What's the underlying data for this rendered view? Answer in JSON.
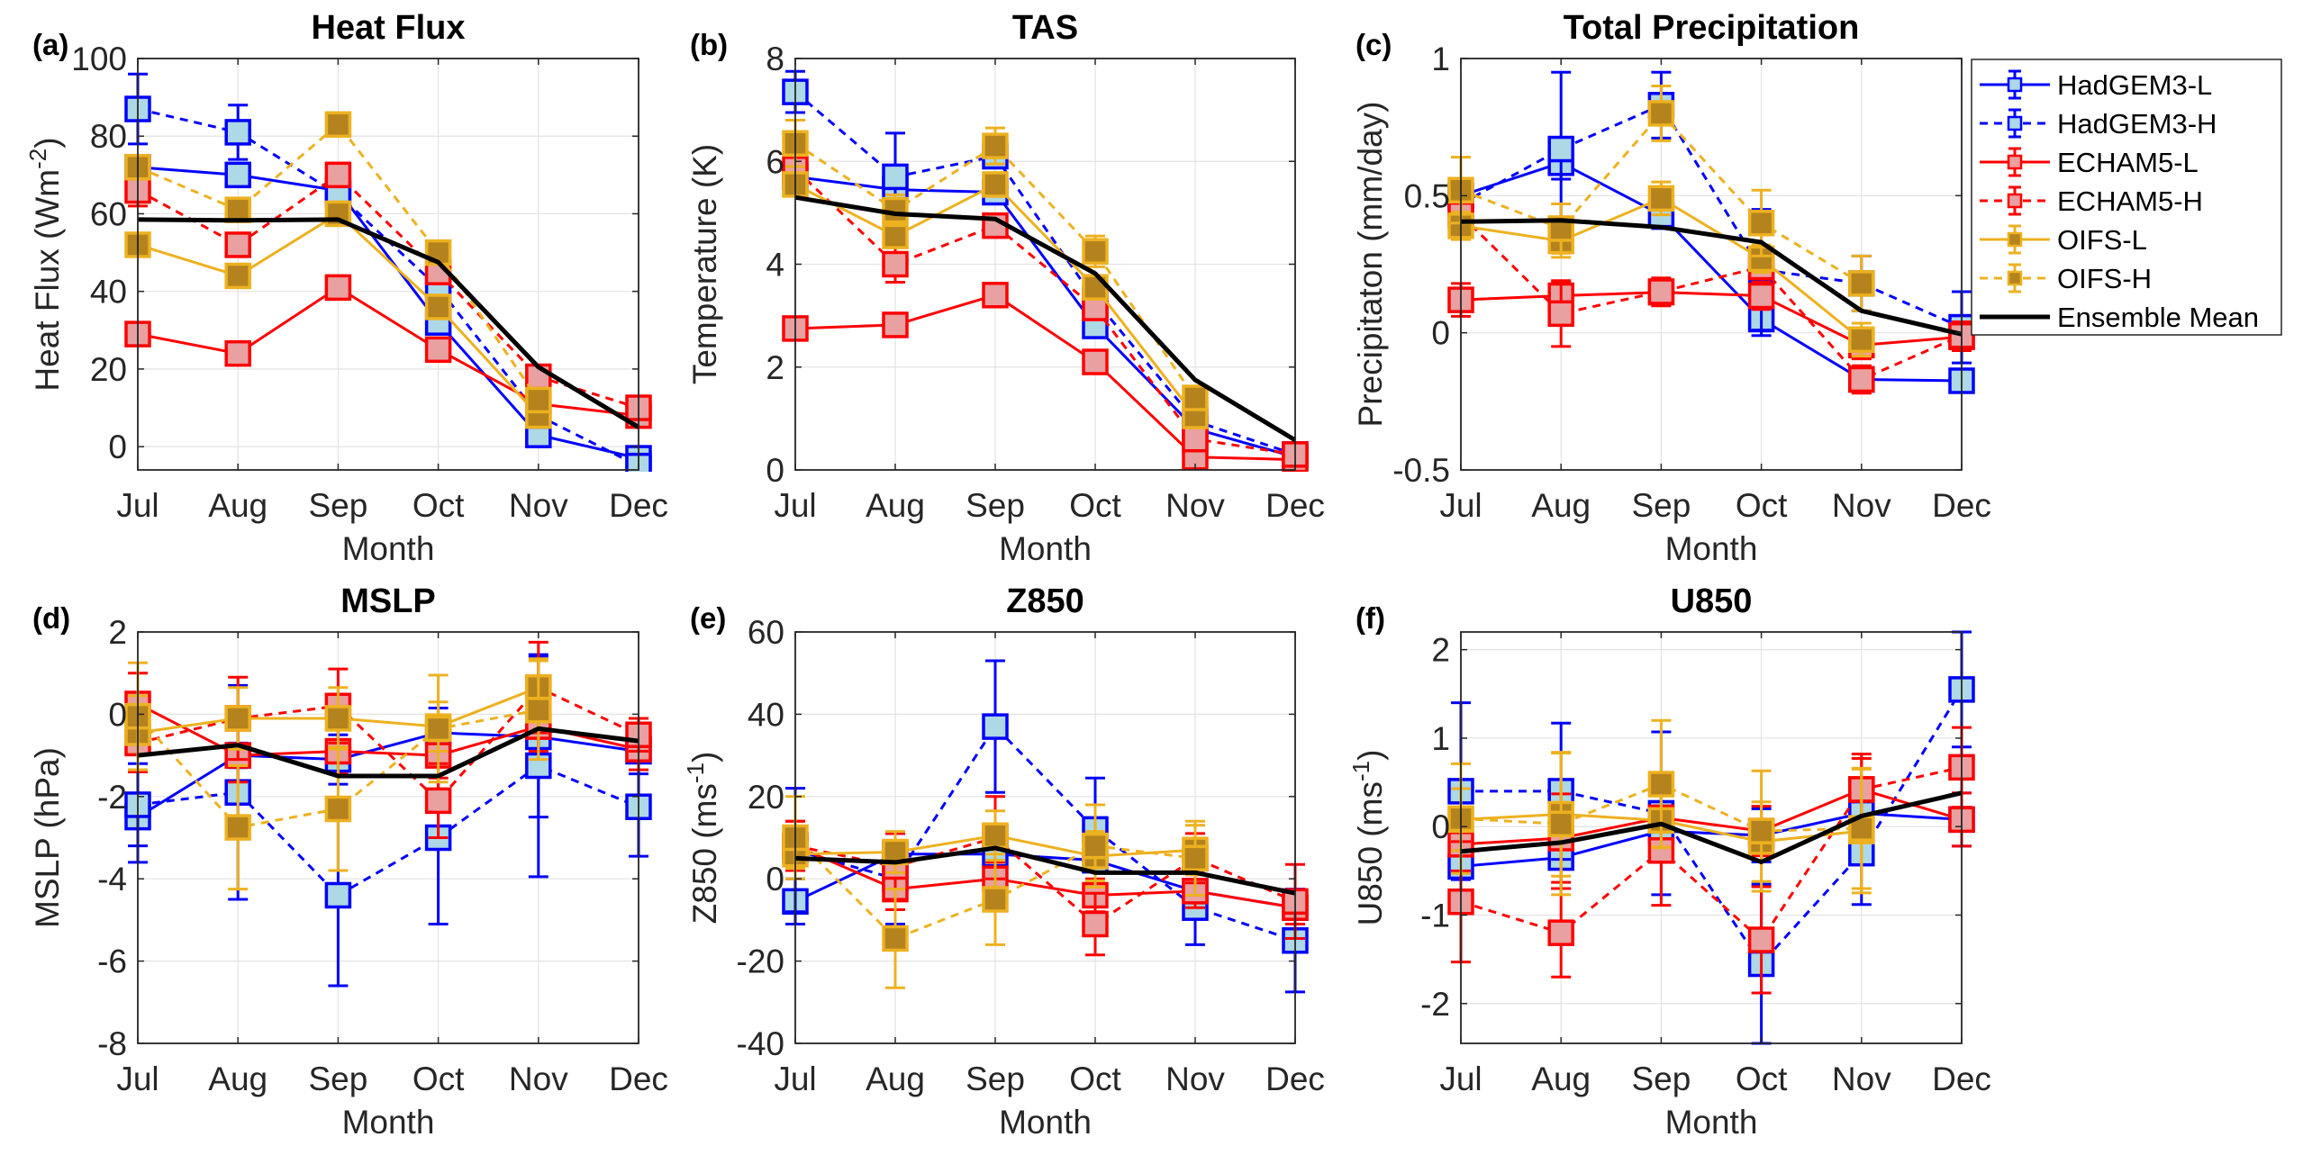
{
  "figure": {
    "legend": {
      "placement": "right-of-panel-c",
      "entries": [
        "HadGEM3-L",
        "HadGEM3-H",
        "ECHAM5-L",
        "ECHAM5-H",
        "OIFS-L",
        "OIFS-H",
        "Ensemble Mean"
      ]
    },
    "series_style": [
      {
        "name": "HadGEM3-L",
        "line": "#0000FF",
        "face": "#ADD8E6",
        "dash": "solid",
        "marker": "square"
      },
      {
        "name": "HadGEM3-H",
        "line": "#0000FF",
        "face": "#ADD8E6",
        "dash": "dashed",
        "marker": "square"
      },
      {
        "name": "ECHAM5-L",
        "line": "#FF0000",
        "face": "#E8A0A0",
        "dash": "solid",
        "marker": "square"
      },
      {
        "name": "ECHAM5-H",
        "line": "#FF0000",
        "face": "#E8A0A0",
        "dash": "dashed",
        "marker": "square"
      },
      {
        "name": "OIFS-L",
        "line": "#EDB120",
        "face": "#B5831D",
        "dash": "solid",
        "marker": "square"
      },
      {
        "name": "OIFS-H",
        "line": "#EDB120",
        "face": "#B5831D",
        "dash": "dashed",
        "marker": "square"
      },
      {
        "name": "Ensemble Mean",
        "line": "#000000",
        "face": null,
        "dash": "solid",
        "marker": "none"
      }
    ]
  },
  "chart_data": [
    {
      "panel": "(a)",
      "type": "line",
      "title": "Heat Flux",
      "xlabel": "Month",
      "ylabel": "Heat Flux (Wm",
      "ylabel_sup": "-2",
      "ylabel_end": ")",
      "categories": [
        "Jul",
        "Aug",
        "Sep",
        "Oct",
        "Nov",
        "Dec"
      ],
      "ylim": [
        -6,
        100
      ],
      "yticks": [
        0,
        20,
        40,
        60,
        80,
        100
      ],
      "grid": true,
      "series": [
        {
          "name": "HadGEM3-L",
          "values": [
            72,
            70,
            66,
            32,
            3,
            -3
          ],
          "err": [
            3,
            2,
            2,
            2,
            2,
            2
          ]
        },
        {
          "name": "HadGEM3-H",
          "values": [
            87,
            81,
            65,
            41,
            8,
            -5
          ],
          "err": [
            9,
            7,
            8,
            3,
            3,
            2
          ]
        },
        {
          "name": "ECHAM5-L",
          "values": [
            29,
            24,
            41,
            25,
            11,
            8
          ],
          "err": [
            2,
            2,
            2,
            2,
            2,
            2
          ]
        },
        {
          "name": "ECHAM5-H",
          "values": [
            66,
            52,
            70,
            45,
            18,
            10
          ],
          "err": [
            4,
            3,
            3,
            3,
            2,
            2
          ]
        },
        {
          "name": "OIFS-L",
          "values": [
            52,
            44,
            60,
            36,
            8,
            null
          ],
          "err": [
            2,
            2,
            2,
            2,
            2,
            null
          ]
        },
        {
          "name": "OIFS-H",
          "values": [
            72,
            61,
            83,
            50,
            12,
            null
          ],
          "err": [
            3,
            2,
            2,
            2,
            2,
            null
          ]
        },
        {
          "name": "Ensemble Mean",
          "values": [
            58.5,
            58.3,
            58.5,
            47.5,
            20.5,
            5
          ]
        }
      ]
    },
    {
      "panel": "(b)",
      "type": "line",
      "title": "TAS",
      "xlabel": "Month",
      "ylabel": "Temperature (K)",
      "ylabel_sup": "",
      "ylabel_end": "",
      "categories": [
        "Jul",
        "Aug",
        "Sep",
        "Oct",
        "Nov",
        "Dec"
      ],
      "ylim": [
        0,
        8
      ],
      "yticks": [
        0,
        2,
        4,
        6,
        8
      ],
      "grid": true,
      "series": [
        {
          "name": "HadGEM3-L",
          "values": [
            5.7,
            5.45,
            5.4,
            2.8,
            0.8,
            0.25
          ],
          "err": [
            0.15,
            0.1,
            0.1,
            0.1,
            0.1,
            0.05
          ]
        },
        {
          "name": "HadGEM3-H",
          "values": [
            7.35,
            5.7,
            6.1,
            3.3,
            0.95,
            0.3
          ],
          "err": [
            0.4,
            0.85,
            0.2,
            0.15,
            0.1,
            0.05
          ]
        },
        {
          "name": "ECHAM5-L",
          "values": [
            2.75,
            2.82,
            3.4,
            2.1,
            0.25,
            0.2
          ],
          "err": [
            0.1,
            0.1,
            0.08,
            0.08,
            0.08,
            0.05
          ]
        },
        {
          "name": "ECHAM5-H",
          "values": [
            5.85,
            4.0,
            4.75,
            3.15,
            0.6,
            0.3
          ],
          "err": [
            0.15,
            0.35,
            0.1,
            0.15,
            0.1,
            0.1
          ]
        },
        {
          "name": "OIFS-L",
          "values": [
            5.55,
            4.55,
            5.55,
            3.55,
            1.05,
            null
          ],
          "err": [
            0.15,
            0.2,
            0.1,
            0.1,
            0.1,
            null
          ]
        },
        {
          "name": "OIFS-H",
          "values": [
            6.35,
            5.05,
            6.3,
            4.25,
            1.4,
            null
          ],
          "err": [
            0.45,
            0.3,
            0.35,
            0.3,
            0.15,
            null
          ]
        },
        {
          "name": "Ensemble Mean",
          "values": [
            5.3,
            4.98,
            4.88,
            3.82,
            1.75,
            0.58
          ]
        }
      ]
    },
    {
      "panel": "(c)",
      "type": "line",
      "title": "Total Precipitation",
      "xlabel": "Month",
      "ylabel": "Precipitaton (mm/day)",
      "ylabel_sup": "",
      "ylabel_end": "",
      "categories": [
        "Jul",
        "Aug",
        "Sep",
        "Oct",
        "Nov",
        "Dec"
      ],
      "ylim": [
        -0.5,
        1
      ],
      "yticks": [
        -0.5,
        0,
        0.5,
        1
      ],
      "grid": true,
      "series": [
        {
          "name": "HadGEM3-L",
          "values": [
            0.5,
            0.62,
            0.43,
            0.05,
            -0.17,
            -0.175
          ],
          "err": [
            0.05,
            0.06,
            0.05,
            0.06,
            0.03,
            0.03
          ]
        },
        {
          "name": "HadGEM3-H",
          "values": [
            0.47,
            0.67,
            0.83,
            0.23,
            0.18,
            0.02
          ],
          "err": [
            0.08,
            0.28,
            0.12,
            0.22,
            0.1,
            0.13
          ]
        },
        {
          "name": "ECHAM5-L",
          "values": [
            0.12,
            0.135,
            0.148,
            0.135,
            -0.045,
            -0.015
          ],
          "err": [
            0.06,
            0.05,
            0.05,
            0.05,
            0.05,
            0.05
          ]
        },
        {
          "name": "ECHAM5-H",
          "values": [
            0.43,
            0.07,
            0.15,
            0.24,
            -0.17,
            -0.01
          ],
          "err": [
            0.03,
            0.12,
            0.05,
            0.03,
            0.05,
            0.05
          ]
        },
        {
          "name": "OIFS-L",
          "values": [
            0.39,
            0.335,
            0.49,
            0.27,
            -0.025,
            null
          ],
          "err": [
            0.05,
            0.06,
            0.06,
            0.05,
            0.06,
            null
          ]
        },
        {
          "name": "OIFS-H",
          "values": [
            0.52,
            0.38,
            0.8,
            0.4,
            0.18,
            null
          ],
          "err": [
            0.12,
            0.09,
            0.1,
            0.12,
            0.1,
            null
          ]
        },
        {
          "name": "Ensemble Mean",
          "values": [
            0.405,
            0.41,
            0.385,
            0.33,
            0.08,
            -0.005
          ]
        }
      ]
    },
    {
      "panel": "(d)",
      "type": "line",
      "title": "MSLP",
      "xlabel": "Month",
      "ylabel": "MSLP (hPa)",
      "ylabel_sup": "",
      "ylabel_end": "",
      "categories": [
        "Jul",
        "Aug",
        "Sep",
        "Oct",
        "Nov",
        "Dec"
      ],
      "ylim": [
        -8,
        2
      ],
      "yticks": [
        -8,
        -6,
        -4,
        -2,
        0,
        2
      ],
      "grid": true,
      "series": [
        {
          "name": "HadGEM3-L",
          "values": [
            -2.5,
            -1.0,
            -1.1,
            -0.45,
            -0.55,
            -0.9
          ],
          "err": [
            1.1,
            0.3,
            0.6,
            0.6,
            1.95,
            0.55
          ]
        },
        {
          "name": "HadGEM3-H",
          "values": [
            -2.2,
            -1.9,
            -4.4,
            -3.0,
            -1.25,
            -2.25
          ],
          "err": [
            1.0,
            2.6,
            2.2,
            2.1,
            2.7,
            1.2
          ]
        },
        {
          "name": "ECHAM5-L",
          "values": [
            0.25,
            -1.0,
            -0.9,
            -1.0,
            -0.3,
            -0.85
          ],
          "err": [
            0.75,
            0.65,
            0.55,
            0.55,
            0.6,
            0.5
          ]
        },
        {
          "name": "ECHAM5-H",
          "values": [
            -0.7,
            -0.1,
            0.2,
            -2.1,
            0.65,
            -0.5
          ],
          "err": [
            0.7,
            1.0,
            0.9,
            0.9,
            1.1,
            0.4
          ]
        },
        {
          "name": "OIFS-L",
          "values": [
            -0.45,
            -0.1,
            -0.1,
            -0.3,
            0.65,
            null
          ],
          "err": [
            0.9,
            0.75,
            0.75,
            0.6,
            0.7,
            null
          ]
        },
        {
          "name": "OIFS-H",
          "values": [
            -0.05,
            -2.75,
            -2.3,
            -0.35,
            0.1,
            null
          ],
          "err": [
            1.3,
            1.5,
            1.5,
            1.3,
            1.2,
            null
          ]
        },
        {
          "name": "Ensemble Mean",
          "values": [
            -1.0,
            -0.75,
            -1.5,
            -1.5,
            -0.35,
            -0.65
          ]
        }
      ]
    },
    {
      "panel": "(e)",
      "type": "line",
      "title": "Z850",
      "xlabel": "Month",
      "ylabel": "Z850 (ms",
      "ylabel_sup": "-1",
      "ylabel_end": ")",
      "categories": [
        "Jul",
        "Aug",
        "Sep",
        "Oct",
        "Nov",
        "Dec"
      ],
      "ylim": [
        -40,
        60
      ],
      "yticks": [
        -40,
        -20,
        0,
        20,
        40,
        60
      ],
      "grid": true,
      "series": [
        {
          "name": "HadGEM3-L",
          "values": [
            -5.5,
            6,
            6,
            4.5,
            -3,
            -7
          ],
          "err": [
            5.5,
            5,
            5,
            5,
            4,
            4
          ]
        },
        {
          "name": "HadGEM3-H",
          "values": [
            7,
            0,
            37,
            12,
            -7,
            -15
          ],
          "err": [
            15,
            11,
            16,
            12.5,
            9,
            12.5
          ]
        },
        {
          "name": "ECHAM5-L",
          "values": [
            8,
            -2.5,
            0,
            -4,
            -3,
            -7
          ],
          "err": [
            6,
            5,
            4,
            4,
            4,
            4
          ]
        },
        {
          "name": "ECHAM5-H",
          "values": [
            8,
            3,
            10,
            -11,
            5,
            -5.5
          ],
          "err": [
            6,
            8,
            10,
            7.5,
            6,
            9
          ]
        },
        {
          "name": "OIFS-L",
          "values": [
            6,
            6.5,
            10.5,
            5.5,
            7,
            null
          ],
          "err": [
            3.5,
            5,
            6,
            6,
            6,
            null
          ]
        },
        {
          "name": "OIFS-H",
          "values": [
            10,
            -14.5,
            -5,
            8,
            5,
            null
          ],
          "err": [
            10,
            12,
            11,
            10,
            9,
            null
          ]
        },
        {
          "name": "Ensemble Mean",
          "values": [
            5,
            4,
            7.5,
            1.5,
            1.5,
            -3.5
          ]
        }
      ]
    },
    {
      "panel": "(f)",
      "type": "line",
      "title": "U850",
      "xlabel": "Month",
      "ylabel": "U850 (ms",
      "ylabel_sup": "-1",
      "ylabel_end": ")",
      "categories": [
        "Jul",
        "Aug",
        "Sep",
        "Oct",
        "Nov",
        "Dec"
      ],
      "ylim": [
        -2.45,
        2.2
      ],
      "yticks": [
        -2,
        -1,
        0,
        1,
        2
      ],
      "grid": true,
      "series": [
        {
          "name": "HadGEM3-L",
          "values": [
            -0.45,
            -0.35,
            -0.05,
            -0.1,
            0.15,
            0.08
          ],
          "err": [
            0.3,
            0.35,
            0.3,
            0.3,
            0.3,
            0.3
          ]
        },
        {
          "name": "HadGEM3-H",
          "values": [
            0.4,
            0.4,
            0.15,
            -1.55,
            -0.3,
            1.55
          ],
          "err": [
            1.0,
            0.77,
            0.92,
            0.9,
            0.58,
            0.65
          ]
        },
        {
          "name": "ECHAM5-L",
          "values": [
            -0.2,
            -0.13,
            0.1,
            -0.05,
            0.42,
            0.08
          ],
          "err": [
            0.3,
            0.5,
            0.3,
            0.28,
            0.4,
            0.3
          ]
        },
        {
          "name": "ECHAM5-H",
          "values": [
            -0.85,
            -1.2,
            -0.27,
            -1.28,
            0.42,
            0.67
          ],
          "err": [
            0.68,
            0.5,
            0.62,
            0.6,
            0.35,
            0.45
          ]
        },
        {
          "name": "OIFS-L",
          "values": [
            0.08,
            0.14,
            0.07,
            -0.17,
            -0.05,
            null
          ],
          "err": [
            0.35,
            0.7,
            0.3,
            0.45,
            0.7,
            null
          ]
        },
        {
          "name": "OIFS-H",
          "values": [
            0.09,
            0.03,
            0.48,
            -0.05,
            -0.02,
            null
          ],
          "err": [
            0.62,
            0.8,
            0.72,
            0.68,
            0.68,
            null
          ]
        },
        {
          "name": "Ensemble Mean",
          "values": [
            -0.28,
            -0.18,
            0.03,
            -0.4,
            0.12,
            0.38
          ]
        }
      ]
    }
  ]
}
